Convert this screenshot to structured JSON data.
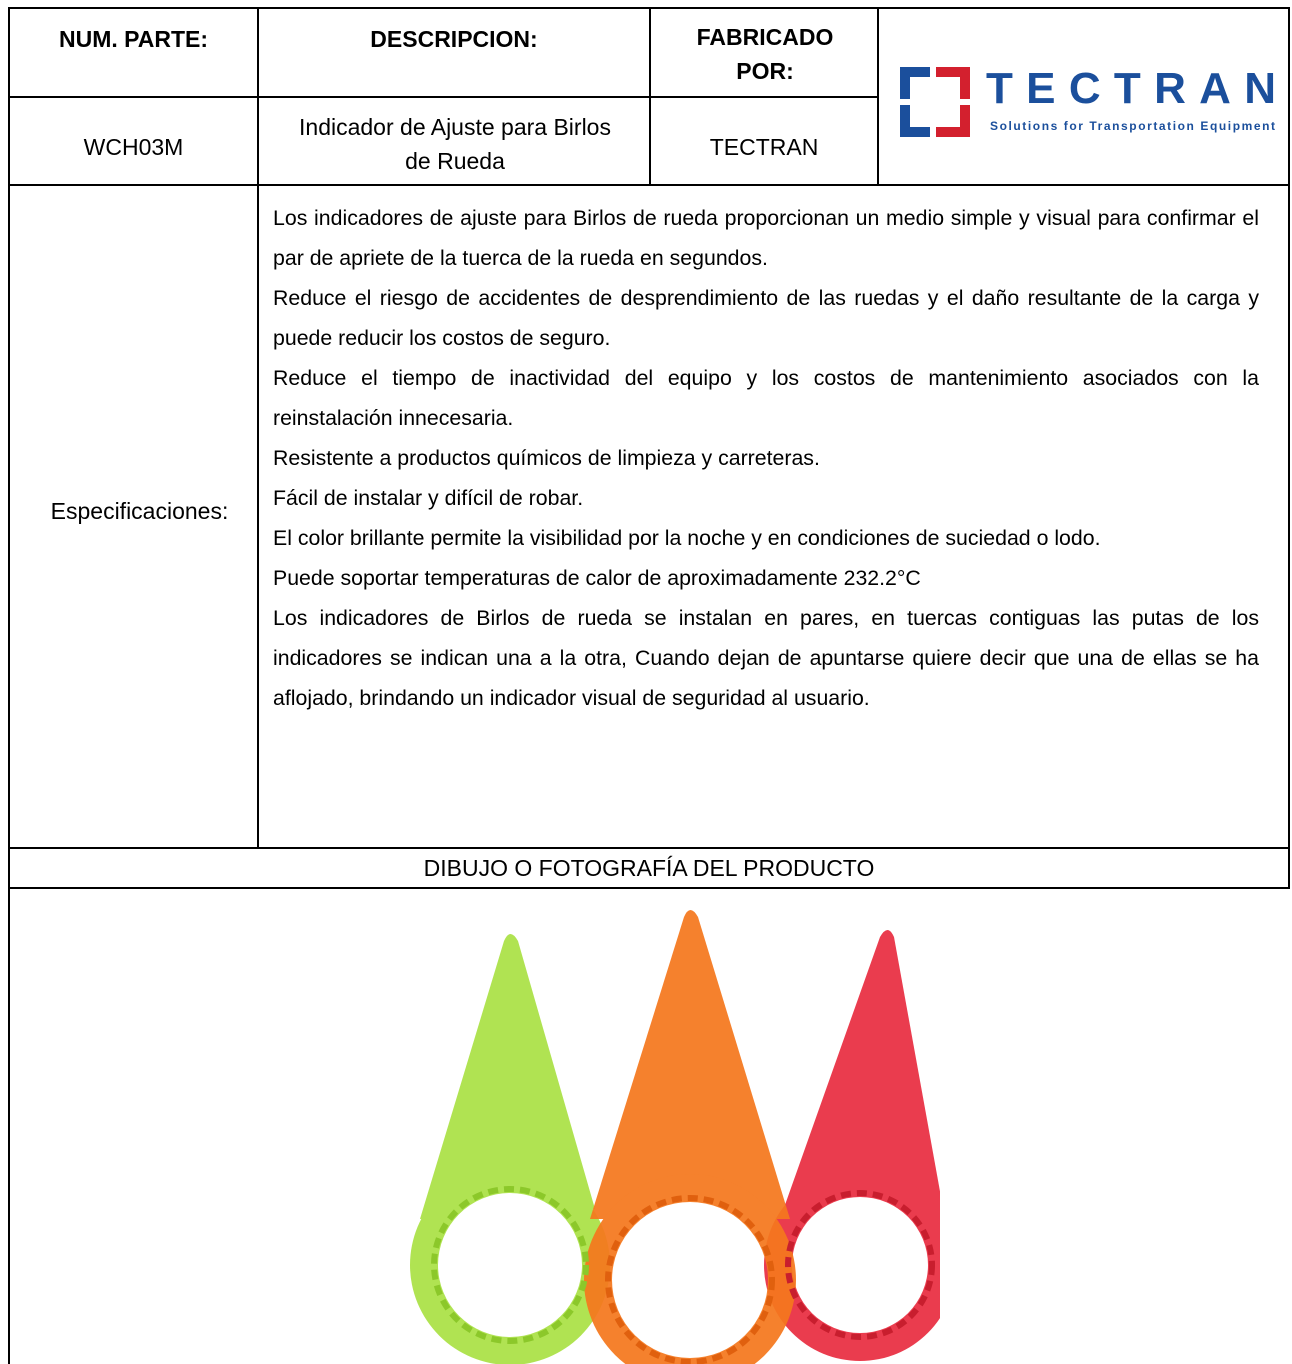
{
  "header": {
    "part_number_label": "NUM. PARTE:",
    "description_label": "DESCRIPCION:",
    "manufacturer_label": "FABRICADO POR:",
    "logo": {
      "name": "TECTRAN",
      "tagline": "Solutions for Transportation Equipment"
    }
  },
  "product": {
    "part_number": "WCH03M",
    "description": "Indicador de Ajuste para Birlos de Rueda",
    "manufacturer": "TECTRAN"
  },
  "specs": {
    "label": "Especificaciones:",
    "paragraphs": [
      "Los indicadores de ajuste para Birlos de rueda proporcionan un medio simple y visual para confirmar el par de apriete de la tuerca de la rueda en segundos.",
      "Reduce el riesgo de accidentes de desprendimiento de las ruedas y el daño resultante de la carga y puede reducir los costos de seguro.",
      "Reduce el tiempo de inactividad del equipo y los costos de mantenimiento asociados con la reinstalación innecesaria.",
      "Resistente a productos químicos de limpieza y carreteras.",
      "Fácil de instalar y difícil de robar.",
      "El color brillante permite la visibilidad por la noche y en condiciones de suciedad o lodo.",
      "Puede soportar temperaturas de calor de aproximadamente 232.2°C",
      "Los indicadores de Birlos de rueda se instalan en pares, en tuercas contiguas las putas de los indicadores se indican una a la otra, Cuando dejan de apuntarse quiere decir que una de ellas se ha aflojado, brindando un indicador visual de seguridad al usuario."
    ]
  },
  "drawing": {
    "title": "DIBUJO O FOTOGRAFÍA DEL PRODUCTO"
  }
}
